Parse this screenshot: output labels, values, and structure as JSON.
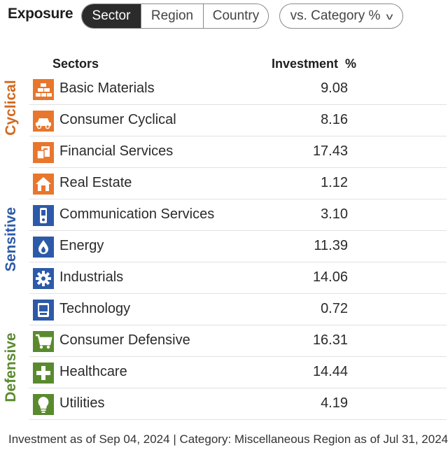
{
  "header": {
    "title": "Exposure",
    "tabs": [
      {
        "label": "Sector",
        "active": true
      },
      {
        "label": "Region",
        "active": false
      },
      {
        "label": "Country",
        "active": false
      }
    ],
    "dropdown": {
      "label": "vs. Category %",
      "icon": "chevron-down-icon"
    }
  },
  "columns": {
    "sectors": "Sectors",
    "investment": "Investment  %"
  },
  "groups": {
    "cyclical": {
      "label": "Cyclical",
      "color": "#d2691e"
    },
    "sensitive": {
      "label": "Sensitive",
      "color": "#2d5aa8"
    },
    "defensive": {
      "label": "Defensive",
      "color": "#5a8a2e"
    }
  },
  "rows": [
    {
      "label": "Basic Materials",
      "value": "9.08",
      "icon": "basic-materials-icon",
      "color": "#e8762d"
    },
    {
      "label": "Consumer Cyclical",
      "value": "8.16",
      "icon": "consumer-cyclical-icon",
      "color": "#e8762d"
    },
    {
      "label": "Financial Services",
      "value": "17.43",
      "icon": "financial-services-icon",
      "color": "#e8762d"
    },
    {
      "label": "Real Estate",
      "value": "1.12",
      "icon": "real-estate-icon",
      "color": "#e8762d"
    },
    {
      "label": "Communication Services",
      "value": "3.10",
      "icon": "communication-services-icon",
      "color": "#2d5aa8"
    },
    {
      "label": "Energy",
      "value": "11.39",
      "icon": "energy-icon",
      "color": "#2d5aa8"
    },
    {
      "label": "Industrials",
      "value": "14.06",
      "icon": "industrials-icon",
      "color": "#2d5aa8"
    },
    {
      "label": "Technology",
      "value": "0.72",
      "icon": "technology-icon",
      "color": "#2d5aa8"
    },
    {
      "label": "Consumer Defensive",
      "value": "16.31",
      "icon": "consumer-defensive-icon",
      "color": "#5a8a2e"
    },
    {
      "label": "Healthcare",
      "value": "14.44",
      "icon": "healthcare-icon",
      "color": "#5a8a2e"
    },
    {
      "label": "Utilities",
      "value": "4.19",
      "icon": "utilities-icon",
      "color": "#5a8a2e"
    }
  ],
  "footer": "Investment as of Sep 04, 2024 | Category: Miscellaneous Region as of Jul 31, 2024"
}
